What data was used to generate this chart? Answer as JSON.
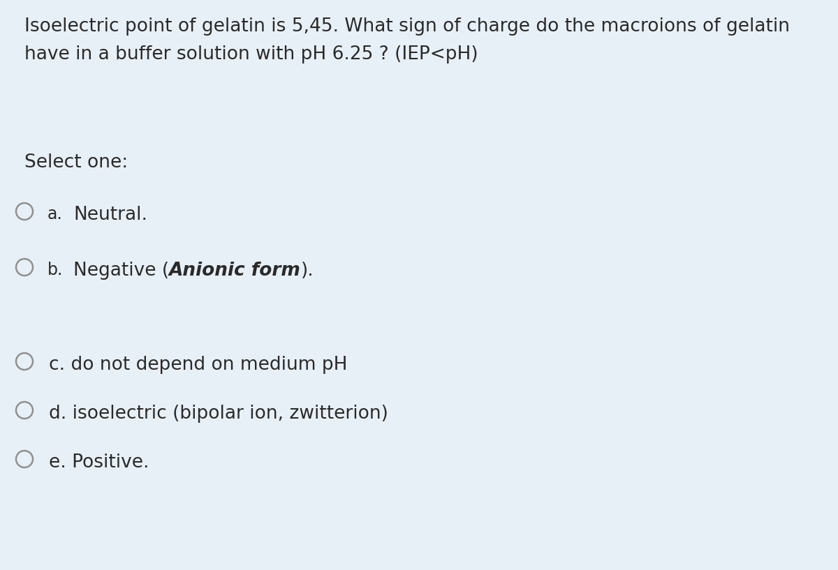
{
  "background_color": "#e8f0f7",
  "question_line1": "Isoelectric point of gelatin is 5,45. What sign of charge do the macroions of gelatin",
  "question_line2": "have in a buffer solution with pH 6.25 ? (IEP<pH)",
  "select_label": "Select one:",
  "options": [
    {
      "label": "a.",
      "text_normal": "Neutral.",
      "text_bold": null
    },
    {
      "label": "b.",
      "text_before": "Negative (",
      "text_bold": "Anionic form",
      "text_after": ")."
    },
    {
      "label": "c.",
      "text_normal": "c. do not depend on medium pH",
      "text_bold": null
    },
    {
      "label": "d.",
      "text_normal": "d. isoelectric (bipolar ion, zwitterion)",
      "text_bold": null
    },
    {
      "label": "e.",
      "text_normal": "e. Positive.",
      "text_bold": null
    }
  ],
  "text_color": "#2a2a2a",
  "circle_color": "#909090",
  "font_size_question": 19,
  "font_size_options": 19,
  "font_size_select": 19,
  "font_size_label": 17
}
